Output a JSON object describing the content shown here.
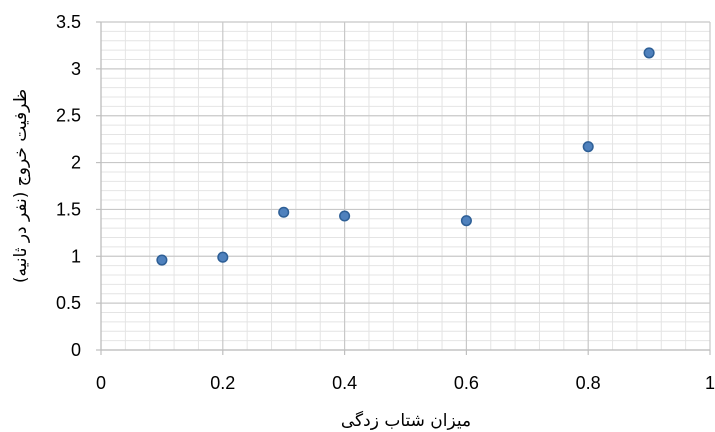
{
  "chart_data": {
    "type": "scatter",
    "title": "",
    "xlabel": "میزان شتاب زدگی",
    "ylabel": "ظرفیت خروج (نفر در ثانیه)",
    "xlim": [
      0,
      1
    ],
    "ylim": [
      0,
      3.5
    ],
    "x_ticks": [
      "0",
      "0.2",
      "0.4",
      "0.6",
      "0.8",
      "1"
    ],
    "y_ticks": [
      "0",
      "0.5",
      "1",
      "1.5",
      "2",
      "2.5",
      "3",
      "3.5"
    ],
    "grid": true,
    "series": [
      {
        "x": [
          0.1,
          0.2,
          0.3,
          0.4,
          0.6,
          0.8,
          0.9
        ],
        "y": [
          0.96,
          0.99,
          1.47,
          1.43,
          1.38,
          2.17,
          3.17
        ],
        "color": "#4f81bd"
      }
    ]
  }
}
